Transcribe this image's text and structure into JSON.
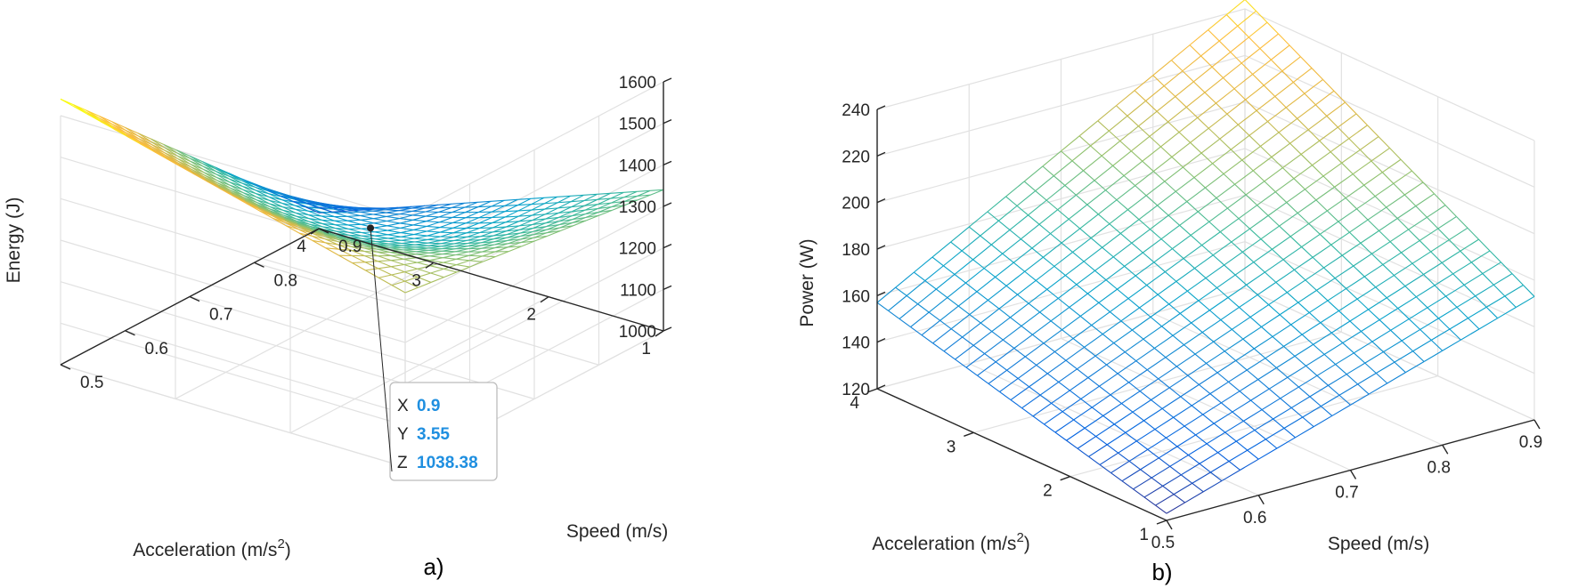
{
  "chart_data": [
    {
      "type": "surface",
      "panel_label": "a)",
      "xlabel": "Speed (m/s)",
      "ylabel_parts": [
        "Acceleration (m/s",
        "2",
        ")"
      ],
      "zlabel": "Energy (J)",
      "xlim": [
        0.5,
        0.9
      ],
      "ylim": [
        1,
        4
      ],
      "zlim": [
        1000,
        1600
      ],
      "x_ticks": [
        "0.5",
        "0.6",
        "0.7",
        "0.8",
        "0.9"
      ],
      "y_ticks": [
        "1",
        "2",
        "3",
        "4"
      ],
      "z_ticks": [
        "1000",
        "1100",
        "1200",
        "1300",
        "1400",
        "1500",
        "1600"
      ],
      "corners": {
        "speed_0.5_acc_1": 1420,
        "speed_0.9_acc_1": 1340,
        "speed_0.5_acc_4": 1640,
        "speed_0.9_acc_4": 1038
      },
      "datatip": {
        "x_key": "X",
        "x_value": "0.9",
        "y_key": "Y",
        "y_value": "3.55",
        "z_key": "Z",
        "z_value": "1038.38"
      },
      "colormap": "parula",
      "grid": true
    },
    {
      "type": "surface",
      "panel_label": "b)",
      "xlabel": "Speed (m/s)",
      "ylabel_parts": [
        "Acceleration (m/s",
        "2",
        ")"
      ],
      "zlabel": "Power (W)",
      "xlim": [
        0.5,
        0.9
      ],
      "ylim": [
        1,
        4
      ],
      "zlim": [
        120,
        240
      ],
      "x_ticks": [
        "0.5",
        "0.6",
        "0.7",
        "0.8",
        "0.9"
      ],
      "y_ticks": [
        "1",
        "2",
        "3",
        "4"
      ],
      "z_ticks": [
        "120",
        "140",
        "160",
        "180",
        "200",
        "220",
        "240"
      ],
      "corners": {
        "speed_0.5_acc_1": 123,
        "speed_0.9_acc_1": 173,
        "speed_0.5_acc_4": 157,
        "speed_0.9_acc_4": 244
      },
      "colormap": "parula",
      "grid": true
    }
  ]
}
